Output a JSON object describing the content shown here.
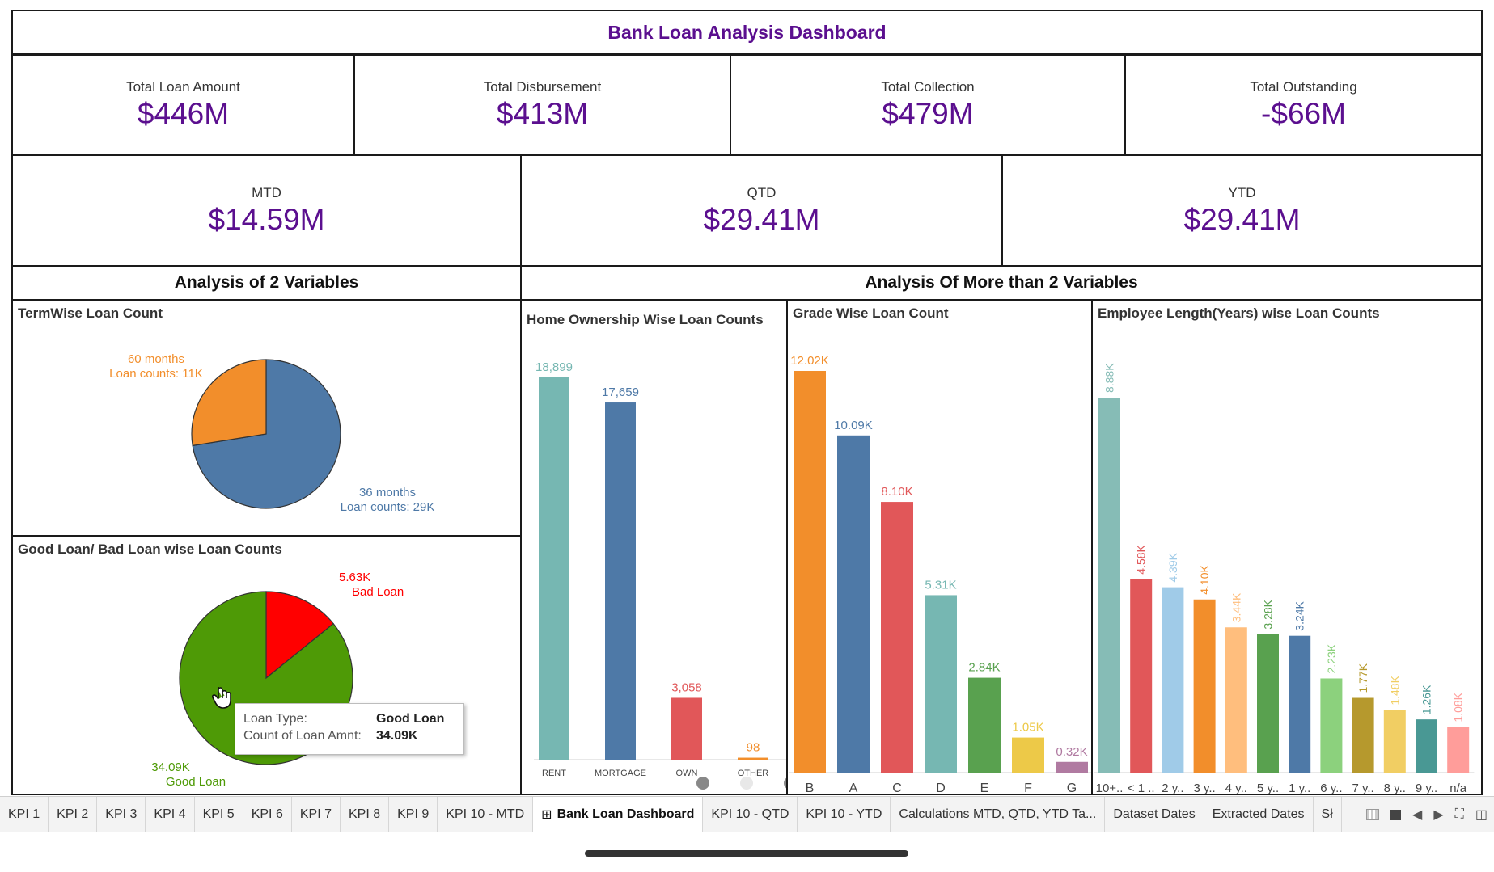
{
  "dashboard": {
    "title": "Bank Loan Analysis Dashboard"
  },
  "kpis_row1": [
    {
      "label": "Total Loan Amount",
      "value": "$446M"
    },
    {
      "label": "Total Disbursement",
      "value": "$413M"
    },
    {
      "label": "Total Collection",
      "value": "$479M"
    },
    {
      "label": "Total Outstanding",
      "value": "-$66M"
    }
  ],
  "kpis_row2": [
    {
      "label": "MTD",
      "value": "$14.59M"
    },
    {
      "label": "QTD",
      "value": "$29.41M"
    },
    {
      "label": "YTD",
      "value": "$29.41M"
    }
  ],
  "sections": {
    "two_vars": "Analysis of 2 Variables",
    "more_vars": "Analysis Of More than 2 Variables"
  },
  "colors": {
    "accent": "#5b0f8f",
    "blue": "#4e79a7",
    "orange": "#f28e2b",
    "red": "#e15759",
    "teal": "#76b7b2",
    "green": "#59a14f",
    "yellow": "#edc948",
    "purple": "#b07aa1",
    "good": "#4e9a06",
    "bad": "#ff0000"
  },
  "chart_data": [
    {
      "id": "term",
      "type": "pie",
      "title": "TermWise Loan Count",
      "slices": [
        {
          "label": "36 months",
          "value_label": "Loan counts: 29K",
          "value": 29,
          "color": "#4e79a7"
        },
        {
          "label": "60 months",
          "value_label": "Loan counts: 11K",
          "value": 11,
          "color": "#f28e2b"
        }
      ]
    },
    {
      "id": "goodbad",
      "type": "pie",
      "title": "Good Loan/ Bad Loan wise Loan Counts",
      "slices": [
        {
          "label": "Bad Loan",
          "value_label": "5.63K",
          "value": 5.63,
          "color": "#ff0000"
        },
        {
          "label": "Good Loan",
          "value_label": "34.09K",
          "value": 34.09,
          "color": "#4e9a06"
        }
      ]
    },
    {
      "id": "home",
      "type": "bar",
      "title": "Home Ownership Wise Loan Counts",
      "categories": [
        "RENT",
        "MORTGAGE",
        "OWN",
        "OTHER"
      ],
      "values": [
        18899,
        17659,
        3058,
        98
      ],
      "labels": [
        "18,899",
        "17,659",
        "3,058",
        "98"
      ],
      "colors": [
        "#76b7b2",
        "#4e79a7",
        "#e15759",
        "#f28e2b"
      ]
    },
    {
      "id": "grade",
      "type": "bar",
      "title": "Grade Wise Loan Count",
      "categories": [
        "B",
        "A",
        "C",
        "D",
        "E",
        "F",
        "G"
      ],
      "values": [
        12.02,
        10.09,
        8.1,
        5.31,
        2.84,
        1.05,
        0.32
      ],
      "labels": [
        "12.02K",
        "10.09K",
        "8.10K",
        "5.31K",
        "2.84K",
        "1.05K",
        "0.32K"
      ],
      "colors": [
        "#f28e2b",
        "#4e79a7",
        "#e15759",
        "#76b7b2",
        "#59a14f",
        "#edc948",
        "#b07aa1"
      ]
    },
    {
      "id": "emp",
      "type": "bar",
      "title": "Employee Length(Years) wise Loan Counts",
      "categories": [
        "10+..",
        "< 1 ..",
        "2 y..",
        "3 y..",
        "4 y..",
        "5 y..",
        "1 y..",
        "6 y..",
        "7 y..",
        "8 y..",
        "9 y..",
        "n/a"
      ],
      "values": [
        8.88,
        4.58,
        4.39,
        4.1,
        3.44,
        3.28,
        3.24,
        2.23,
        1.77,
        1.48,
        1.26,
        1.08
      ],
      "labels": [
        "8.88K",
        "4.58K",
        "4.39K",
        "4.10K",
        "3.44K",
        "3.28K",
        "3.24K",
        "2.23K",
        "1.77K",
        "1.48K",
        "1.26K",
        "1.08K"
      ],
      "colors": [
        "#86bcb6",
        "#e15759",
        "#a0cbe8",
        "#f28e2b",
        "#ffbe7d",
        "#59a14f",
        "#4e79a7",
        "#8cd17d",
        "#b6992d",
        "#f1ce63",
        "#499894",
        "#ff9d9a"
      ]
    }
  ],
  "tooltip": {
    "k1": "Loan Type:",
    "v1": "Good Loan",
    "k2": "Count of Loan Amnt:",
    "v2": "34.09K"
  },
  "tabs": [
    "KPI 1",
    "KPI 2",
    "KPI 3",
    "KPI 4",
    "KPI 5",
    "KPI 6",
    "KPI 7",
    "KPI 8",
    "KPI 9",
    "KPI 10 - MTD",
    "Bank Loan Dashboard",
    "KPI 10 - QTD",
    "KPI 10 - YTD",
    "Calculations MTD, QTD, YTD Ta...",
    "Dataset Dates",
    "Extracted Dates",
    "Sł"
  ],
  "active_tab": "Bank Loan Dashboard"
}
